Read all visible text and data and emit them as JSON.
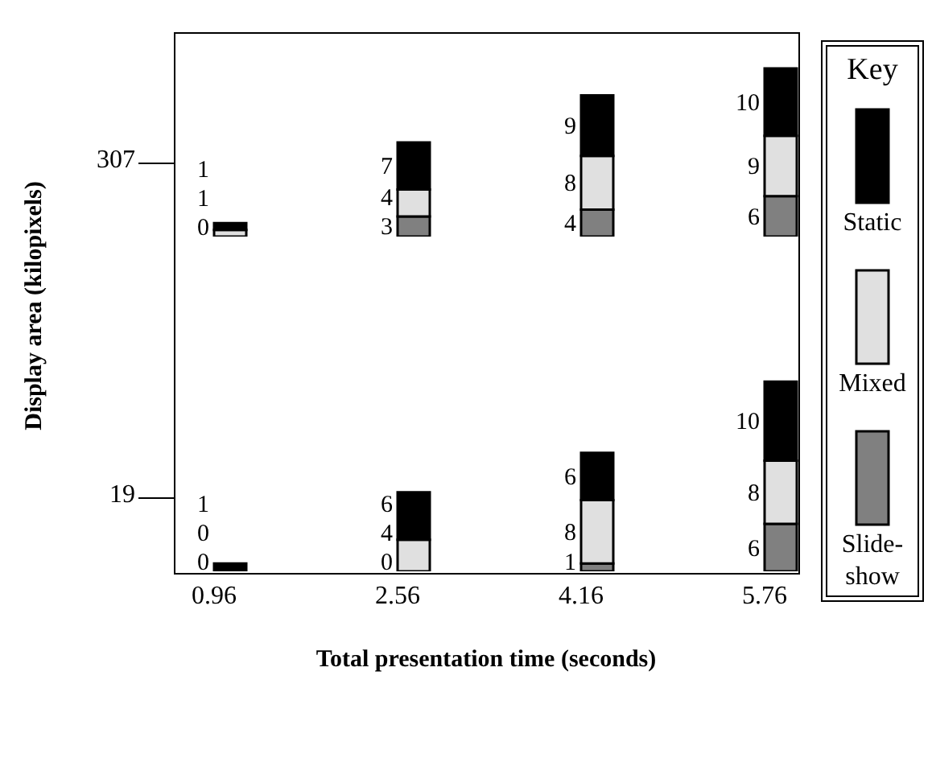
{
  "chart_data": [
    {
      "type": "bar",
      "stacked": true,
      "categories": [
        "0.96",
        "2.56",
        "4.16",
        "5.76"
      ],
      "ylabel": "Display area (kilopixels)",
      "annotations": [
        "307"
      ],
      "tick_labels": false,
      "data_labels": true,
      "legend": "right",
      "legend_title": "Key",
      "series": [
        {
          "name": "Slide-show",
          "color": "#808080",
          "values": [
            0,
            3,
            4,
            6
          ]
        },
        {
          "name": "Mixed",
          "color": "#e0e0e0",
          "values": [
            1,
            4,
            8,
            9
          ]
        },
        {
          "name": "Static",
          "color": "#000000",
          "values": [
            1,
            7,
            9,
            10
          ]
        }
      ]
    },
    {
      "type": "bar",
      "stacked": true,
      "categories": [
        "0.96",
        "2.56",
        "4.16",
        "5.76"
      ],
      "xlabel": "Total presentation time (seconds)",
      "annotations": [
        "19"
      ],
      "tick_labels": "x",
      "data_labels": true,
      "series": [
        {
          "color": "#808080",
          "values": [
            0,
            0,
            1,
            6
          ]
        },
        {
          "color": "#e0e0e0",
          "values": [
            0,
            4,
            8,
            8
          ]
        },
        {
          "color": "#000000",
          "values": [
            1,
            6,
            6,
            10
          ]
        }
      ]
    }
  ]
}
